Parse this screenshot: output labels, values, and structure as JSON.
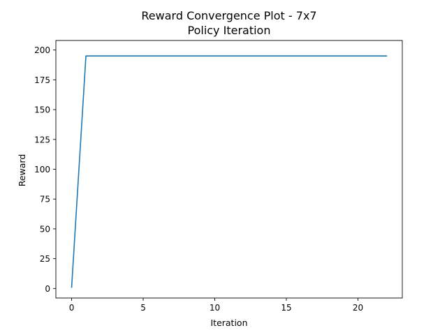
{
  "chart_data": {
    "type": "line",
    "title": "Reward Convergence Plot - 7x7",
    "subtitle": "Policy Iteration",
    "xlabel": "Iteration",
    "ylabel": "Reward",
    "xlim": [
      -1.1,
      23.1
    ],
    "ylim": [
      -8,
      208
    ],
    "xticks": [
      0,
      5,
      10,
      15,
      20
    ],
    "yticks": [
      0,
      25,
      50,
      75,
      100,
      125,
      150,
      175,
      200
    ],
    "grid": false,
    "series": [
      {
        "color": "#1f77b4",
        "x": [
          0,
          1,
          2,
          3,
          4,
          5,
          6,
          7,
          8,
          9,
          10,
          11,
          12,
          13,
          14,
          15,
          16,
          17,
          18,
          19,
          20,
          21,
          22
        ],
        "y": [
          1,
          195,
          195,
          195,
          195,
          195,
          195,
          195,
          195,
          195,
          195,
          195,
          195,
          195,
          195,
          195,
          195,
          195,
          195,
          195,
          195,
          195,
          195
        ]
      }
    ]
  }
}
